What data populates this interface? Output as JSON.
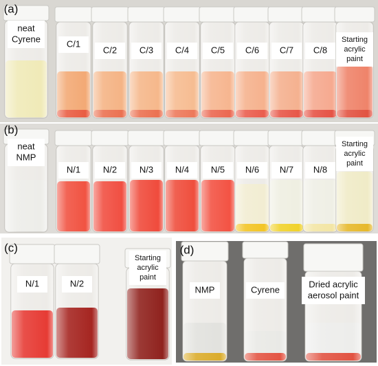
{
  "panels": [
    {
      "tag": "(a)",
      "labels": [
        [
          "neat",
          "Cyrene"
        ],
        [
          "C/1"
        ],
        [
          "C/2"
        ],
        [
          "C/3"
        ],
        [
          "C/4"
        ],
        [
          "C/5"
        ],
        [
          "C/6"
        ],
        [
          "C/7"
        ],
        [
          "C/8"
        ],
        [
          "Starting",
          "acrylic",
          "paint"
        ]
      ]
    },
    {
      "tag": "(b)",
      "labels": [
        [
          "neat",
          "NMP"
        ],
        [
          "N/1"
        ],
        [
          "N/2"
        ],
        [
          "N/3"
        ],
        [
          "N/4"
        ],
        [
          "N/5"
        ],
        [
          "N/6"
        ],
        [
          "N/7"
        ],
        [
          "N/8"
        ],
        [
          "Starting",
          "acrylic",
          "paint"
        ]
      ]
    },
    {
      "tag": "(c)",
      "labels": [
        [
          "N/1"
        ],
        [
          "N/2"
        ],
        [
          "Starting",
          "acrylic",
          "paint"
        ]
      ]
    },
    {
      "tag": "(d)",
      "labels": [
        [
          "NMP"
        ],
        [
          "Cyrene"
        ],
        [
          "Dried acrylic",
          "aerosol paint"
        ]
      ]
    }
  ]
}
